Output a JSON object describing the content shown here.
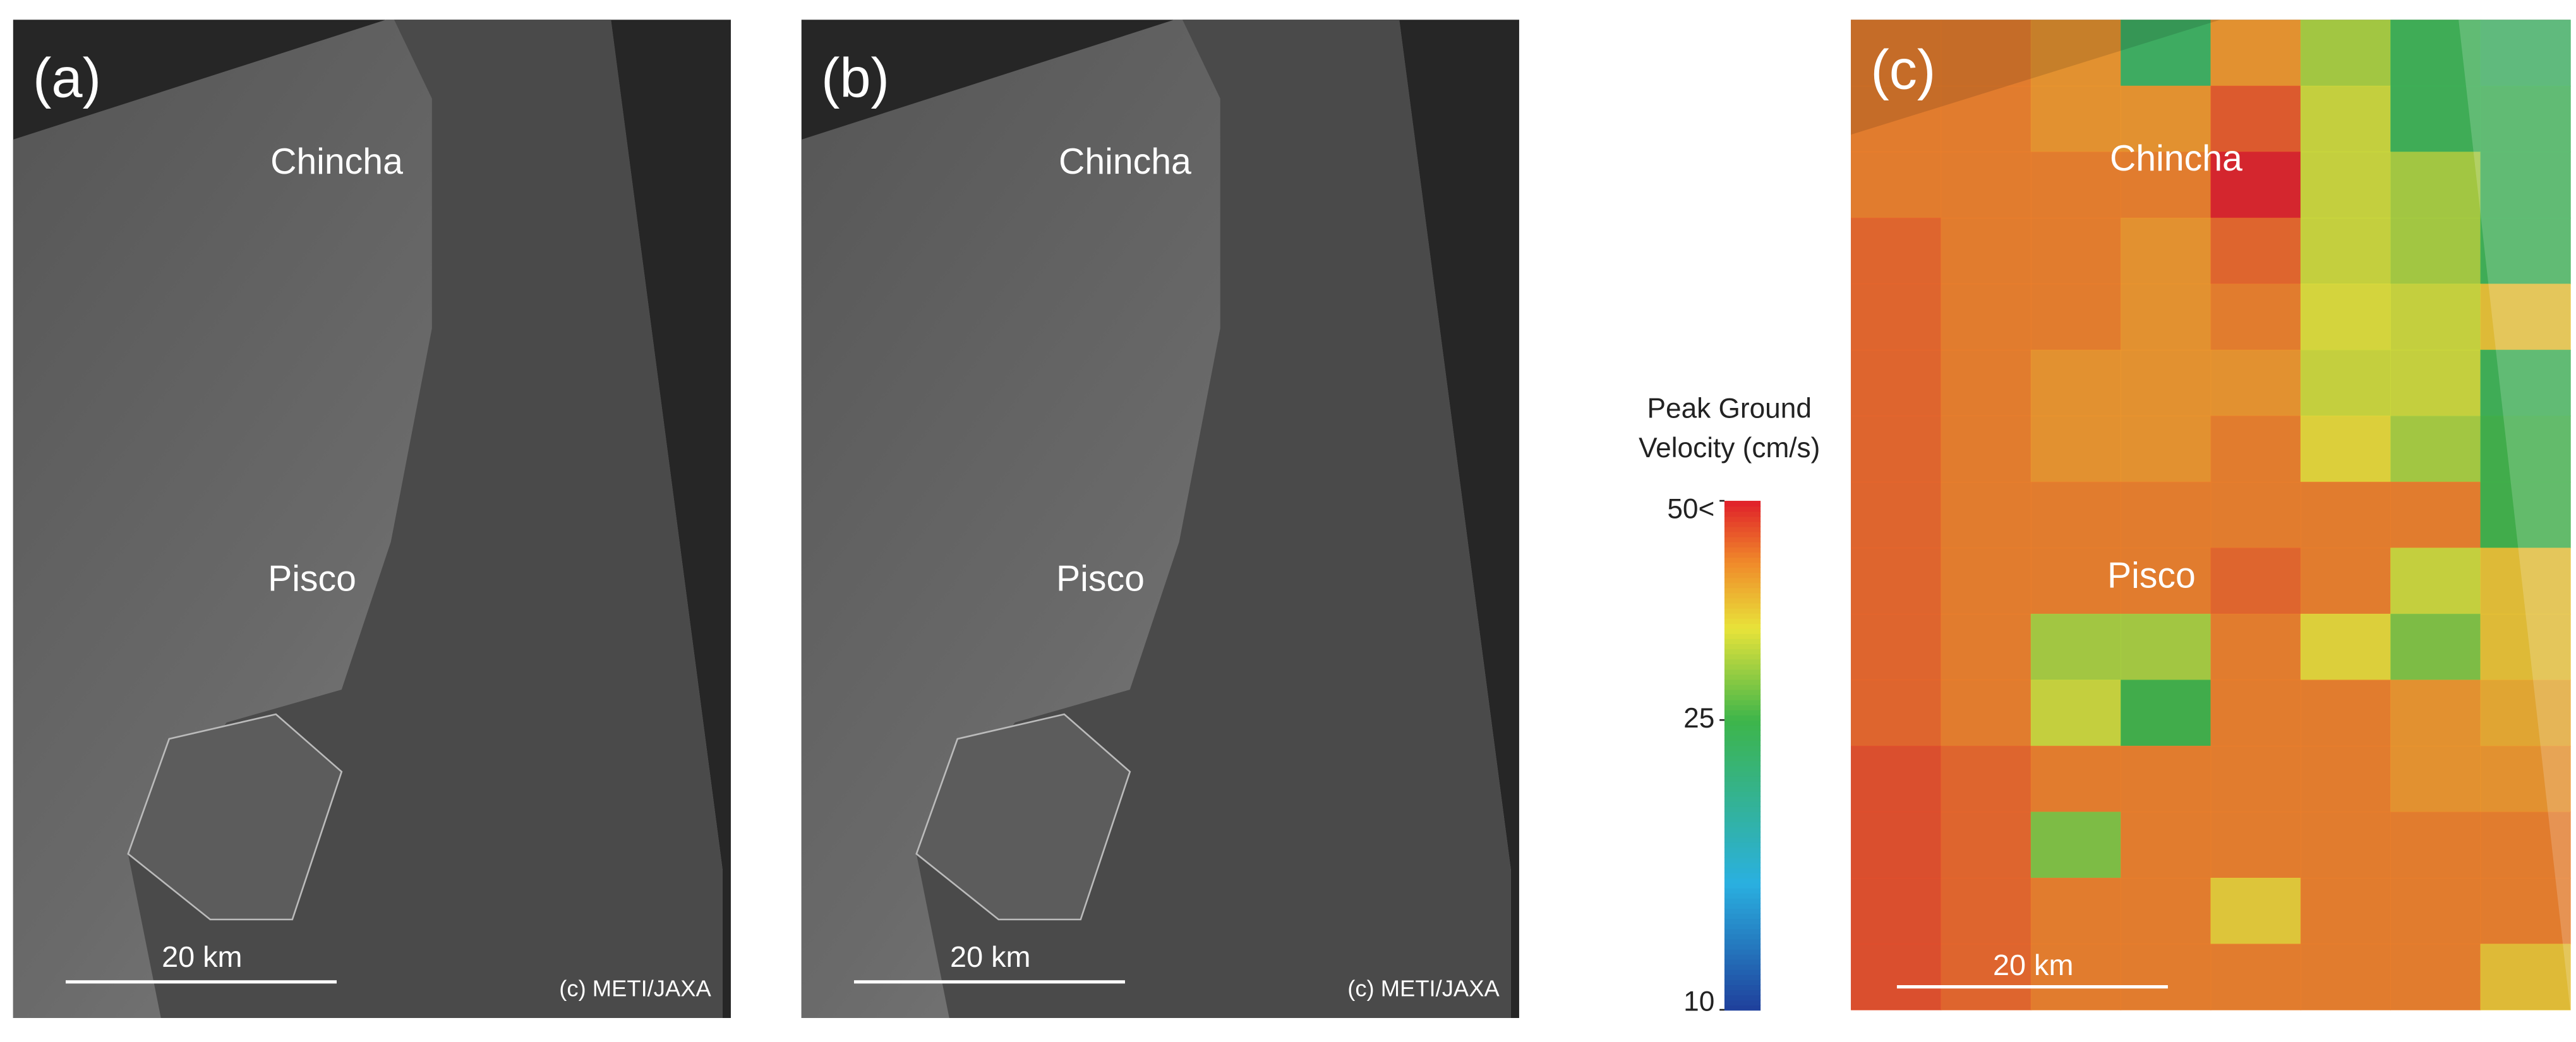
{
  "panels": [
    {
      "label": "(a)",
      "places": [
        "Chincha",
        "Pisco"
      ],
      "scale_bar": "20 km",
      "credit": "(c) METI/JAXA"
    },
    {
      "label": "(b)",
      "places": [
        "Chincha",
        "Pisco"
      ],
      "scale_bar": "20 km",
      "credit": "(c) METI/JAXA"
    },
    {
      "label": "(c)",
      "places": [
        "Chincha",
        "Pisco"
      ],
      "scale_bar": "20 km"
    }
  ],
  "colorbar": {
    "title_lines": [
      "Peak Ground",
      "Velocity (cm/s)"
    ],
    "lim": [
      10,
      50
    ],
    "log_scale": true,
    "ticks": [
      {
        "value": 50,
        "label": "50<"
      },
      25,
      10
    ]
  },
  "pgv_grid": {
    "values": [
      [
        42,
        42,
        40,
        23,
        40,
        30,
        24,
        23
      ],
      [
        42,
        42,
        40,
        40,
        45,
        32,
        24,
        24
      ],
      [
        42,
        42,
        42,
        42,
        50,
        32,
        30,
        24
      ],
      [
        44,
        42,
        42,
        40,
        44,
        32,
        30,
        24
      ],
      [
        44,
        42,
        42,
        40,
        42,
        33,
        32,
        36
      ],
      [
        44,
        42,
        40,
        40,
        40,
        32,
        32,
        24
      ],
      [
        44,
        42,
        40,
        40,
        42,
        34,
        30,
        25
      ],
      [
        44,
        42,
        42,
        42,
        42,
        42,
        42,
        25
      ],
      [
        44,
        42,
        42,
        42,
        44,
        42,
        32,
        36
      ],
      [
        44,
        42,
        30,
        30,
        42,
        34,
        28,
        36
      ],
      [
        44,
        42,
        32,
        25,
        42,
        42,
        40,
        38
      ],
      [
        46,
        44,
        42,
        42,
        42,
        42,
        40,
        40
      ],
      [
        46,
        44,
        28,
        42,
        42,
        42,
        42,
        42
      ],
      [
        46,
        44,
        42,
        42,
        35,
        42,
        42,
        42
      ],
      [
        46,
        44,
        42,
        42,
        42,
        42,
        42,
        36
      ]
    ]
  }
}
